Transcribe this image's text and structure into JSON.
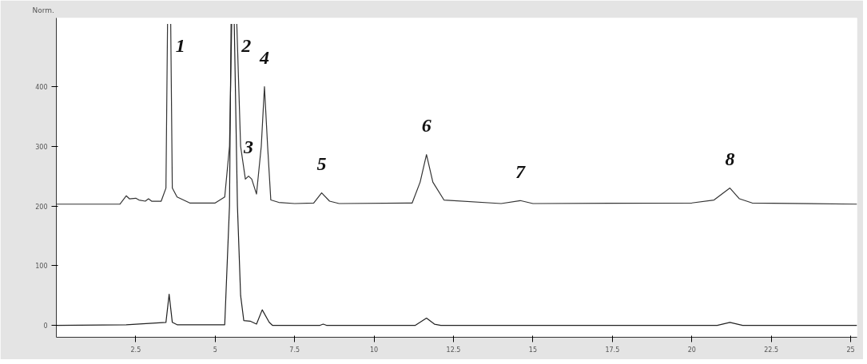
{
  "chart_data": {
    "type": "line",
    "ylabel": "Norm.",
    "xlim": [
      0,
      25.2
    ],
    "ylim": [
      -20,
      515
    ],
    "xticks": [
      {
        "value": 2.5,
        "label": "2.5"
      },
      5,
      {
        "value": 7.5,
        "label": "7.5"
      },
      10,
      {
        "value": 12.5,
        "label": "12.5"
      },
      15,
      {
        "value": 17.5,
        "label": "17.5"
      },
      20,
      {
        "value": 22.5,
        "label": "22.5"
      },
      25
    ],
    "yticks": [
      0,
      100,
      200,
      300,
      400
    ],
    "grid": false,
    "marker": "none",
    "line_style": "solid",
    "series": [
      {
        "color": "#333333",
        "x": [
          0,
          2.0,
          2.2,
          2.3,
          2.5,
          2.6,
          2.8,
          2.9,
          3.0,
          3.3,
          3.45,
          3.5,
          3.55,
          3.6,
          3.65,
          3.8,
          4.2,
          5.0,
          5.3,
          5.45,
          5.52,
          5.6,
          5.68,
          5.8,
          5.95,
          6.05,
          6.15,
          6.3,
          6.45,
          6.55,
          6.65,
          6.75,
          7.0,
          7.5,
          8.1,
          8.35,
          8.6,
          8.9,
          11.2,
          11.45,
          11.65,
          11.85,
          12.2,
          14.0,
          14.6,
          15.0,
          20.0,
          20.7,
          21.2,
          21.5,
          21.9,
          25.2
        ],
        "values": [
          203,
          203,
          217,
          212,
          213,
          210,
          208,
          212,
          208,
          208,
          230,
          505,
          null,
          505,
          230,
          215,
          205,
          205,
          215,
          300,
          505,
          null,
          505,
          300,
          245,
          250,
          245,
          220,
          300,
          400,
          300,
          210,
          206,
          204,
          205,
          222,
          208,
          204,
          205,
          240,
          286,
          240,
          210,
          204,
          209,
          204,
          205,
          210,
          230,
          212,
          205,
          203
        ]
      },
      {
        "color": "#222222",
        "x": [
          0,
          2.2,
          3.45,
          3.55,
          3.65,
          3.8,
          5.3,
          5.45,
          5.5,
          5.55,
          5.6,
          5.7,
          5.8,
          5.9,
          6.1,
          6.3,
          6.48,
          6.7,
          6.8,
          8.3,
          8.4,
          8.5,
          11.3,
          11.65,
          11.9,
          12.1,
          20.8,
          21.2,
          21.6,
          25.2
        ],
        "values": [
          0,
          1,
          5,
          52,
          5,
          1,
          1,
          200,
          505,
          null,
          505,
          200,
          50,
          8,
          7,
          2,
          26,
          5,
          0,
          0,
          2,
          0,
          0,
          12,
          2,
          0,
          0,
          5,
          0,
          0
        ]
      }
    ],
    "annotations": [
      {
        "text": "1",
        "x": 3.6,
        "y": 505
      },
      {
        "text": "2",
        "x": 5.68,
        "y": 505
      },
      {
        "text": "3",
        "x": 6.05,
        "y": 250
      },
      {
        "text": "4",
        "x": 6.55,
        "y": 400
      },
      {
        "text": "5",
        "x": 8.35,
        "y": 222
      },
      {
        "text": "6",
        "x": 11.65,
        "y": 286
      },
      {
        "text": "7",
        "x": 14.6,
        "y": 209
      },
      {
        "text": "8",
        "x": 21.2,
        "y": 230
      }
    ]
  }
}
